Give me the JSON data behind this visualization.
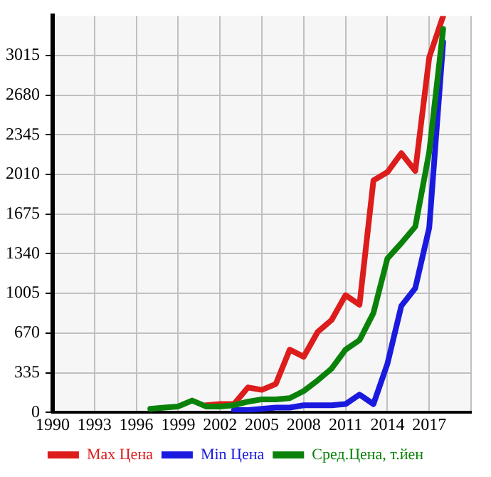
{
  "chart_data": {
    "type": "line",
    "x": [
      1997,
      1998,
      1999,
      2000,
      2001,
      2002,
      2003,
      2004,
      2005,
      2006,
      2007,
      2008,
      2009,
      2010,
      2011,
      2012,
      2013,
      2014,
      2015,
      2016,
      2017,
      2018
    ],
    "series": [
      {
        "name": "Max Цена",
        "color": "#dd1c1c",
        "values": [
          null,
          null,
          null,
          null,
          60,
          70,
          70,
          210,
          190,
          240,
          530,
          470,
          680,
          780,
          990,
          910,
          1960,
          2030,
          2190,
          2040,
          3000,
          3350
        ]
      },
      {
        "name": "Min Цена",
        "color": "#1a1adf",
        "values": [
          null,
          null,
          null,
          null,
          null,
          null,
          20,
          20,
          30,
          40,
          40,
          60,
          60,
          60,
          70,
          150,
          70,
          410,
          900,
          1050,
          1560,
          3130
        ]
      },
      {
        "name": "Сред.Цена, т.йен",
        "color": "#0a820a",
        "values": [
          30,
          40,
          50,
          100,
          50,
          50,
          60,
          90,
          110,
          110,
          120,
          180,
          270,
          370,
          530,
          610,
          840,
          1300,
          1430,
          1570,
          2200,
          3240
        ]
      }
    ],
    "xlim": [
      1990,
      2020
    ],
    "xticks": [
      1990,
      1993,
      1996,
      1999,
      2002,
      2005,
      2008,
      2011,
      2014,
      2017,
      {
        "value": 2020,
        "label": null
      }
    ],
    "ylim": [
      0,
      3350
    ],
    "yticks": [
      0,
      335,
      670,
      1005,
      1340,
      1675,
      2010,
      2345,
      2680,
      3015
    ],
    "grid": true,
    "legend": "bottom",
    "marker": "none",
    "line_style": "solid"
  }
}
